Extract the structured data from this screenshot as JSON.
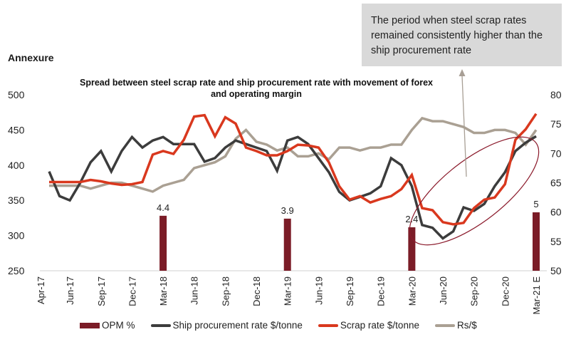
{
  "heading": "Annexure",
  "callout": {
    "text": "The period when steel scrap rates remained consistently higher than the ship procurement rate"
  },
  "colors": {
    "opm": "#7b1c27",
    "ship": "#3c3c3c",
    "scrap": "#d9381e",
    "rs": "#aaa093",
    "ellipse": "#8b1a2b",
    "arrow": "#a89f95",
    "axis": "#d0d0d0"
  },
  "chart_data": {
    "type": "line",
    "title": "Spread between steel scrap rate and ship procurement rate with movement of forex and operating margin",
    "xlabel": "",
    "ylabel": "",
    "ylim": [
      250,
      500
    ],
    "y2lim": [
      50,
      80
    ],
    "yticks": [
      "500",
      "450",
      "400",
      "350",
      "300",
      "250"
    ],
    "y2ticks": [
      "80",
      "75",
      "70",
      "65",
      "60",
      "55",
      "50"
    ],
    "grid": false,
    "legend_position": "bottom",
    "x": [
      "Apr-17",
      "May-17",
      "Jun-17",
      "Jul-17",
      "Aug-17",
      "Sep-17",
      "Oct-17",
      "Nov-17",
      "Dec-17",
      "Jan-18",
      "Feb-18",
      "Mar-18",
      "Apr-18",
      "May-18",
      "Jun-18",
      "Jul-18",
      "Aug-18",
      "Sep-18",
      "Oct-18",
      "Nov-18",
      "Dec-18",
      "Jan-19",
      "Feb-19",
      "Mar-19",
      "Apr-19",
      "May-19",
      "Jun-19",
      "Jul-19",
      "Aug-19",
      "Sep-19",
      "Oct-19",
      "Nov-19",
      "Dec-19",
      "Jan-20",
      "Feb-20",
      "Mar-20",
      "Apr-20",
      "May-20",
      "Jun-20",
      "Jul-20",
      "Aug-20",
      "Sep-20",
      "Oct-20",
      "Nov-20",
      "Dec-20",
      "Jan-21",
      "Feb-21",
      "Mar-21 E"
    ],
    "xtick_labels": [
      "Apr-17",
      "Jun-17",
      "Sep-17",
      "Dec-17",
      "Mar-18",
      "Jun-18",
      "Sep-18",
      "Dec-18",
      "Mar-19",
      "Jun-19",
      "Sep-19",
      "Dec-19",
      "Mar-20",
      "Jun-20",
      "Sep-20",
      "Dec-20",
      "Mar-21 E"
    ],
    "series": [
      {
        "name": "Ship procurement rate $/tonne",
        "axis": "left",
        "type": "line",
        "values": [
          391,
          356,
          350,
          375,
          404,
          420,
          391,
          420,
          440,
          425,
          435,
          440,
          430,
          430,
          430,
          405,
          410,
          425,
          435,
          430,
          425,
          420,
          392,
          435,
          440,
          430,
          410,
          390,
          362,
          350,
          355,
          360,
          370,
          410,
          400,
          370,
          315,
          311,
          296,
          306,
          340,
          335,
          345,
          370,
          390,
          420,
          432,
          441
        ]
      },
      {
        "name": "Scrap rate $/tonne",
        "axis": "left",
        "type": "line",
        "values": [
          376,
          376,
          376,
          376,
          379,
          377,
          374,
          372,
          373,
          376,
          415,
          420,
          416,
          436,
          469,
          471,
          441,
          468,
          459,
          425,
          420,
          414,
          414,
          420,
          429,
          428,
          425,
          404,
          370,
          351,
          356,
          347,
          352,
          356,
          366,
          386,
          339,
          336,
          319,
          316,
          318,
          339,
          351,
          354,
          373,
          436,
          451,
          473
        ]
      },
      {
        "name": "Rs/$",
        "axis": "right",
        "type": "line",
        "values": [
          64.5,
          64.5,
          64.5,
          64.5,
          64.0,
          64.5,
          65.0,
          65.0,
          64.5,
          64.0,
          63.5,
          64.5,
          65.0,
          65.5,
          67.5,
          68.0,
          68.5,
          69.5,
          72.5,
          74.0,
          72.0,
          71.5,
          70.5,
          71.0,
          69.5,
          69.5,
          70.0,
          69.0,
          71.0,
          71.0,
          70.5,
          71.0,
          71.0,
          71.5,
          71.5,
          74.0,
          76.0,
          75.5,
          75.5,
          75.0,
          74.5,
          73.5,
          73.5,
          74.0,
          74.0,
          73.5,
          71.5,
          74.0
        ]
      },
      {
        "name": "OPM %",
        "axis": "hidden",
        "type": "bar",
        "points": [
          {
            "x": "Mar-18",
            "value": 4.4,
            "label": "4.4"
          },
          {
            "x": "Mar-19",
            "value": 3.9,
            "label": "3.9"
          },
          {
            "x": "Mar-20",
            "value": 2.4,
            "label": "2.4"
          },
          {
            "x": "Mar-21 E",
            "value": 5,
            "label": "5"
          }
        ]
      }
    ],
    "annotations": [
      {
        "type": "ellipse",
        "description": "Highlights Mar-20 to Mar-21 E period"
      },
      {
        "type": "arrow",
        "description": "Points from ellipse to callout box"
      }
    ]
  },
  "legend": [
    {
      "label": "OPM %",
      "kind": "bar",
      "color_key": "opm"
    },
    {
      "label": "Ship procurement rate $/tonne",
      "kind": "line",
      "color_key": "ship"
    },
    {
      "label": "Scrap rate $/tonne",
      "kind": "line",
      "color_key": "scrap"
    },
    {
      "label": "Rs/$",
      "kind": "line",
      "color_key": "rs"
    }
  ]
}
